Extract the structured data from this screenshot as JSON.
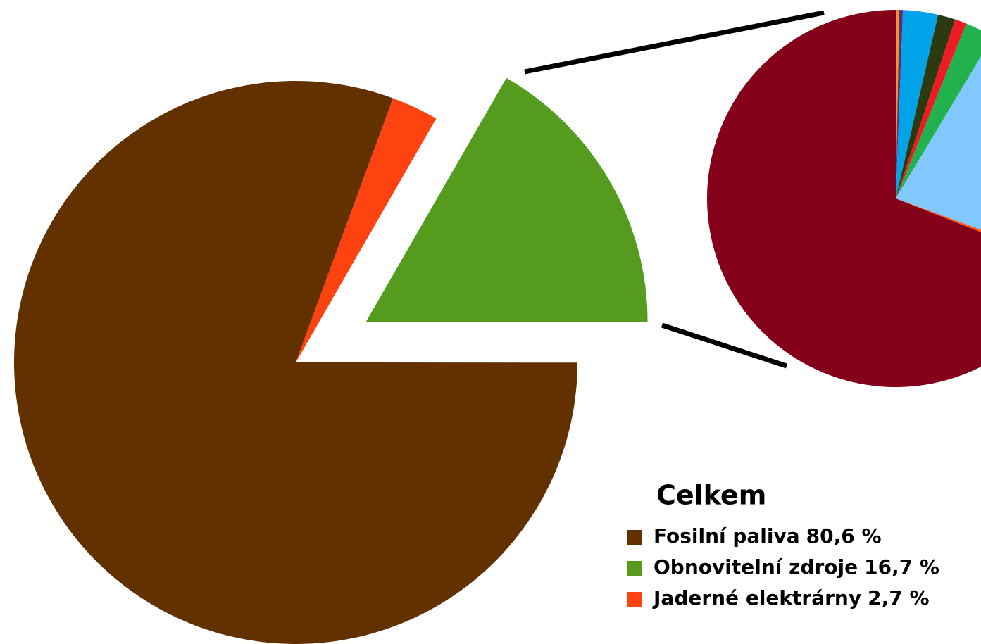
{
  "chart_data": [
    {
      "type": "pie",
      "legend_title": "Celkem",
      "categories": [
        "Fosilní paliva",
        "Obnovitelní zdroje",
        "Jaderné elektrárny"
      ],
      "values": [
        80.6,
        16.7,
        2.7
      ],
      "value_labels": [
        "80,6 %",
        "16,7 %",
        "2,7 %"
      ],
      "colors": [
        "#633100",
        "#559b1e",
        "#ff4310"
      ],
      "explode": [
        false,
        true,
        false
      ],
      "legend": true
    },
    {
      "type": "pie",
      "categories": [
        null,
        null,
        null,
        null,
        null,
        null,
        null,
        null,
        null
      ],
      "values": [
        0.3,
        0.3,
        3,
        1.5,
        1,
        2.5,
        22,
        0.4,
        69
      ],
      "colors": [
        "#f7941d",
        "#5b2a86",
        "#00a2e8",
        "#2d3a0f",
        "#ed1c24",
        "#22b14c",
        "#80c8ff",
        "#ff5a1a",
        "#850019"
      ],
      "legend": false
    }
  ]
}
